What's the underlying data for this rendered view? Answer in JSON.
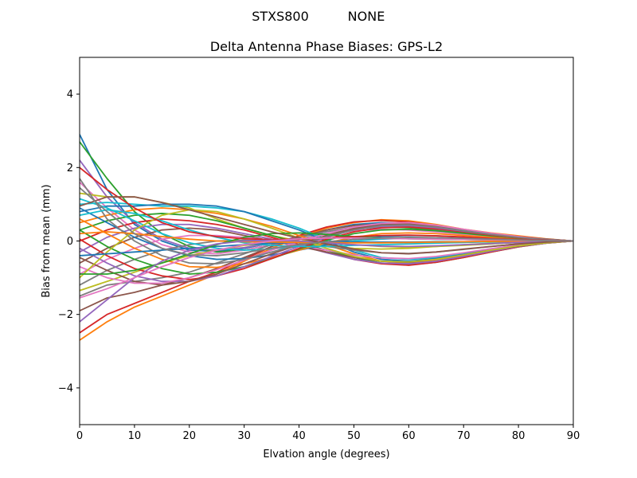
{
  "figure": {
    "suptitle_left": "STXS800",
    "suptitle_right": "NONE"
  },
  "chart_data": {
    "type": "line",
    "title": "Delta Antenna Phase Biases: GPS-L2",
    "xlabel": "Elvation angle (degrees)",
    "ylabel": "Bias from mean (mm)",
    "xlim": [
      0,
      90
    ],
    "ylim": [
      -5,
      5
    ],
    "xticks": [
      0,
      10,
      20,
      30,
      40,
      50,
      60,
      70,
      80,
      90
    ],
    "yticks": [
      -4,
      -2,
      0,
      2,
      4
    ],
    "xtick_labels": [
      "0",
      "10",
      "20",
      "30",
      "40",
      "50",
      "60",
      "70",
      "80",
      "90"
    ],
    "ytick_labels": [
      "−4",
      "−2",
      "0",
      "2",
      "4"
    ],
    "grid": false,
    "legend": "none",
    "x": [
      0,
      5,
      10,
      15,
      20,
      25,
      30,
      35,
      40,
      45,
      50,
      55,
      60,
      65,
      70,
      75,
      80,
      85,
      90
    ],
    "series": [
      {
        "values": [
          2.9,
          1.4,
          0.45,
          0.0,
          -0.25,
          -0.28,
          -0.2,
          -0.05,
          0.12,
          0.3,
          0.45,
          0.5,
          0.48,
          0.4,
          0.3,
          0.2,
          0.12,
          0.05,
          0.0
        ]
      },
      {
        "values": [
          -2.7,
          -2.2,
          -1.8,
          -1.5,
          -1.2,
          -0.9,
          -0.55,
          -0.2,
          0.1,
          0.35,
          0.5,
          0.58,
          0.55,
          0.45,
          0.32,
          0.22,
          0.14,
          0.06,
          0.0
        ]
      },
      {
        "values": [
          2.7,
          1.7,
          0.8,
          0.2,
          -0.15,
          -0.3,
          -0.25,
          -0.1,
          0.05,
          0.2,
          0.32,
          0.38,
          0.36,
          0.3,
          0.22,
          0.15,
          0.1,
          0.05,
          0.0
        ]
      },
      {
        "values": [
          -2.5,
          -2.0,
          -1.7,
          -1.4,
          -1.1,
          -0.85,
          -0.5,
          -0.15,
          0.15,
          0.38,
          0.52,
          0.56,
          0.52,
          0.42,
          0.3,
          0.2,
          0.12,
          0.05,
          0.0
        ]
      },
      {
        "values": [
          2.2,
          1.2,
          0.5,
          0.05,
          -0.2,
          -0.25,
          -0.18,
          -0.05,
          0.1,
          0.25,
          0.38,
          0.42,
          0.4,
          0.33,
          0.24,
          0.16,
          0.1,
          0.04,
          0.0
        ]
      },
      {
        "values": [
          -1.9,
          -1.55,
          -1.4,
          -1.2,
          -1.0,
          -0.75,
          -0.45,
          -0.15,
          0.1,
          0.3,
          0.42,
          0.47,
          0.45,
          0.37,
          0.27,
          0.18,
          0.11,
          0.05,
          0.0
        ]
      },
      {
        "values": [
          1.6,
          0.9,
          0.3,
          -0.1,
          -0.3,
          -0.35,
          -0.25,
          -0.1,
          0.05,
          0.18,
          0.28,
          0.32,
          0.3,
          0.25,
          0.18,
          0.12,
          0.08,
          0.03,
          0.0
        ]
      },
      {
        "values": [
          -1.5,
          -1.2,
          -1.1,
          -1.0,
          -0.85,
          -0.6,
          -0.35,
          -0.1,
          0.1,
          0.26,
          0.36,
          0.4,
          0.38,
          0.32,
          0.24,
          0.16,
          0.1,
          0.04,
          0.0
        ]
      },
      {
        "values": [
          1.3,
          1.2,
          1.2,
          1.05,
          0.9,
          0.6,
          0.35,
          0.15,
          0.0,
          -0.12,
          -0.2,
          -0.22,
          -0.2,
          -0.15,
          -0.1,
          -0.06,
          -0.03,
          -0.01,
          0.0
        ]
      },
      {
        "values": [
          1.0,
          1.05,
          1.0,
          0.95,
          0.95,
          0.9,
          0.8,
          0.6,
          0.35,
          0.05,
          -0.25,
          -0.45,
          -0.5,
          -0.45,
          -0.35,
          -0.22,
          -0.12,
          -0.05,
          0.0
        ]
      },
      {
        "values": [
          0.8,
          0.95,
          0.95,
          1.0,
          1.0,
          0.95,
          0.8,
          0.55,
          0.3,
          0.0,
          -0.3,
          -0.5,
          -0.55,
          -0.48,
          -0.37,
          -0.24,
          -0.13,
          -0.05,
          0.0
        ]
      },
      {
        "values": [
          0.5,
          0.7,
          0.85,
          0.9,
          0.85,
          0.75,
          0.6,
          0.4,
          0.15,
          -0.1,
          -0.35,
          -0.55,
          -0.6,
          -0.52,
          -0.4,
          -0.26,
          -0.14,
          -0.05,
          0.0
        ]
      },
      {
        "values": [
          0.3,
          0.55,
          0.7,
          0.75,
          0.7,
          0.55,
          0.35,
          0.15,
          -0.05,
          -0.25,
          -0.45,
          -0.6,
          -0.65,
          -0.58,
          -0.45,
          -0.3,
          -0.16,
          -0.06,
          0.0
        ]
      },
      {
        "values": [
          0.0,
          0.3,
          0.5,
          0.6,
          0.55,
          0.45,
          0.3,
          0.1,
          -0.1,
          -0.3,
          -0.5,
          -0.62,
          -0.66,
          -0.58,
          -0.45,
          -0.3,
          -0.16,
          -0.06,
          0.0
        ]
      },
      {
        "values": [
          -0.3,
          0.1,
          0.35,
          0.45,
          0.45,
          0.35,
          0.2,
          0.05,
          -0.12,
          -0.32,
          -0.5,
          -0.6,
          -0.62,
          -0.55,
          -0.42,
          -0.28,
          -0.15,
          -0.06,
          0.0
        ]
      },
      {
        "values": [
          -0.6,
          -0.2,
          0.1,
          0.3,
          0.35,
          0.3,
          0.15,
          0.0,
          -0.15,
          -0.3,
          -0.45,
          -0.55,
          -0.58,
          -0.5,
          -0.38,
          -0.25,
          -0.14,
          -0.05,
          0.0
        ]
      },
      {
        "values": [
          -0.9,
          -0.5,
          -0.2,
          0.05,
          0.15,
          0.15,
          0.1,
          0.0,
          -0.12,
          -0.25,
          -0.38,
          -0.46,
          -0.48,
          -0.42,
          -0.32,
          -0.21,
          -0.11,
          -0.04,
          0.0
        ]
      },
      {
        "values": [
          -1.2,
          -0.8,
          -0.5,
          -0.25,
          -0.1,
          0.0,
          0.02,
          0.0,
          -0.05,
          -0.15,
          -0.25,
          -0.32,
          -0.34,
          -0.3,
          -0.23,
          -0.15,
          -0.08,
          -0.03,
          0.0
        ]
      },
      {
        "values": [
          -1.35,
          -1.1,
          -0.85,
          -0.6,
          -0.4,
          -0.25,
          -0.12,
          -0.05,
          -0.02,
          -0.05,
          -0.1,
          -0.15,
          -0.17,
          -0.15,
          -0.12,
          -0.08,
          -0.04,
          -0.01,
          0.0
        ]
      },
      {
        "values": [
          1.15,
          0.9,
          0.55,
          0.2,
          -0.05,
          -0.2,
          -0.25,
          -0.22,
          -0.15,
          -0.08,
          0.0,
          0.05,
          0.08,
          0.08,
          0.06,
          0.04,
          0.02,
          0.01,
          0.0
        ]
      },
      {
        "values": [
          0.9,
          0.5,
          0.1,
          -0.2,
          -0.4,
          -0.5,
          -0.48,
          -0.38,
          -0.25,
          -0.1,
          0.05,
          0.12,
          0.15,
          0.14,
          0.1,
          0.07,
          0.04,
          0.02,
          0.0
        ]
      },
      {
        "values": [
          0.6,
          0.2,
          -0.2,
          -0.5,
          -0.7,
          -0.72,
          -0.62,
          -0.45,
          -0.25,
          -0.05,
          0.1,
          0.2,
          0.22,
          0.2,
          0.15,
          0.1,
          0.06,
          0.02,
          0.0
        ]
      },
      {
        "values": [
          0.3,
          -0.15,
          -0.5,
          -0.75,
          -0.9,
          -0.85,
          -0.7,
          -0.48,
          -0.22,
          0.02,
          0.2,
          0.3,
          0.32,
          0.28,
          0.21,
          0.14,
          0.08,
          0.03,
          0.0
        ]
      },
      {
        "values": [
          0.05,
          -0.4,
          -0.75,
          -0.95,
          -1.05,
          -0.95,
          -0.75,
          -0.48,
          -0.2,
          0.05,
          0.25,
          0.36,
          0.38,
          0.33,
          0.25,
          0.16,
          0.09,
          0.03,
          0.0
        ]
      },
      {
        "values": [
          -0.2,
          -0.6,
          -0.95,
          -1.1,
          -1.1,
          -0.95,
          -0.7,
          -0.42,
          -0.15,
          0.1,
          0.3,
          0.4,
          0.42,
          0.36,
          0.27,
          0.18,
          0.1,
          0.04,
          0.0
        ]
      },
      {
        "values": [
          -0.45,
          -0.8,
          -1.1,
          -1.2,
          -1.1,
          -0.9,
          -0.62,
          -0.35,
          -0.1,
          0.15,
          0.34,
          0.45,
          0.46,
          0.4,
          0.3,
          0.2,
          0.11,
          0.04,
          0.0
        ]
      },
      {
        "values": [
          -0.7,
          -1.0,
          -1.15,
          -1.15,
          -1.0,
          -0.78,
          -0.52,
          -0.25,
          -0.02,
          0.2,
          0.38,
          0.48,
          0.5,
          0.43,
          0.32,
          0.21,
          0.12,
          0.04,
          0.0
        ]
      },
      {
        "values": [
          1.7,
          0.6,
          0.0,
          -0.4,
          -0.6,
          -0.62,
          -0.5,
          -0.3,
          -0.1,
          0.12,
          0.3,
          0.42,
          0.44,
          0.38,
          0.28,
          0.18,
          0.1,
          0.04,
          0.0
        ]
      },
      {
        "values": [
          -1.0,
          -0.3,
          0.3,
          0.7,
          0.85,
          0.8,
          0.6,
          0.35,
          0.08,
          -0.2,
          -0.42,
          -0.55,
          -0.57,
          -0.5,
          -0.38,
          -0.25,
          -0.13,
          -0.05,
          0.0
        ]
      },
      {
        "values": [
          0.7,
          0.85,
          0.75,
          0.55,
          0.3,
          0.1,
          -0.05,
          -0.12,
          -0.15,
          -0.15,
          -0.12,
          -0.1,
          -0.08,
          -0.06,
          -0.04,
          -0.02,
          -0.01,
          0.0,
          0.0
        ]
      },
      {
        "values": [
          -0.4,
          -0.35,
          -0.3,
          -0.25,
          -0.2,
          -0.15,
          -0.1,
          -0.06,
          -0.04,
          -0.03,
          -0.03,
          -0.03,
          -0.03,
          -0.02,
          -0.02,
          -0.01,
          -0.01,
          0.0,
          0.0
        ]
      },
      {
        "values": [
          0.2,
          0.25,
          0.2,
          0.12,
          0.05,
          0.0,
          -0.02,
          -0.03,
          -0.04,
          -0.05,
          -0.05,
          -0.05,
          -0.04,
          -0.03,
          -0.02,
          -0.01,
          -0.01,
          0.0,
          0.0
        ]
      },
      {
        "values": [
          -0.9,
          -0.9,
          -0.8,
          -0.6,
          -0.35,
          -0.1,
          0.1,
          0.2,
          0.22,
          0.18,
          0.12,
          0.08,
          0.06,
          0.05,
          0.04,
          0.03,
          0.02,
          0.01,
          0.0
        ]
      },
      {
        "values": [
          2.0,
          1.4,
          0.9,
          0.5,
          0.25,
          0.12,
          0.06,
          0.04,
          0.05,
          0.08,
          0.12,
          0.15,
          0.16,
          0.14,
          0.11,
          0.07,
          0.04,
          0.02,
          0.0
        ]
      },
      {
        "values": [
          -2.2,
          -1.6,
          -1.0,
          -0.55,
          -0.25,
          -0.08,
          0.0,
          0.02,
          0.0,
          -0.05,
          -0.1,
          -0.14,
          -0.15,
          -0.13,
          -0.1,
          -0.07,
          -0.04,
          -0.02,
          0.0
        ]
      },
      {
        "values": [
          0.95,
          1.2,
          1.2,
          1.05,
          0.85,
          0.65,
          0.45,
          0.25,
          0.08,
          -0.08,
          -0.22,
          -0.32,
          -0.35,
          -0.3,
          -0.22,
          -0.15,
          -0.08,
          -0.03,
          0.0
        ]
      },
      {
        "values": [
          -1.55,
          -1.3,
          -1.0,
          -0.7,
          -0.45,
          -0.25,
          -0.1,
          0.0,
          0.06,
          0.08,
          0.08,
          0.07,
          0.06,
          0.05,
          0.04,
          0.03,
          0.02,
          0.01,
          0.0
        ]
      },
      {
        "values": [
          1.45,
          0.8,
          0.2,
          -0.2,
          -0.38,
          -0.4,
          -0.32,
          -0.2,
          -0.1,
          -0.02,
          0.04,
          0.08,
          0.1,
          0.09,
          0.07,
          0.05,
          0.03,
          0.01,
          0.0
        ]
      }
    ]
  }
}
